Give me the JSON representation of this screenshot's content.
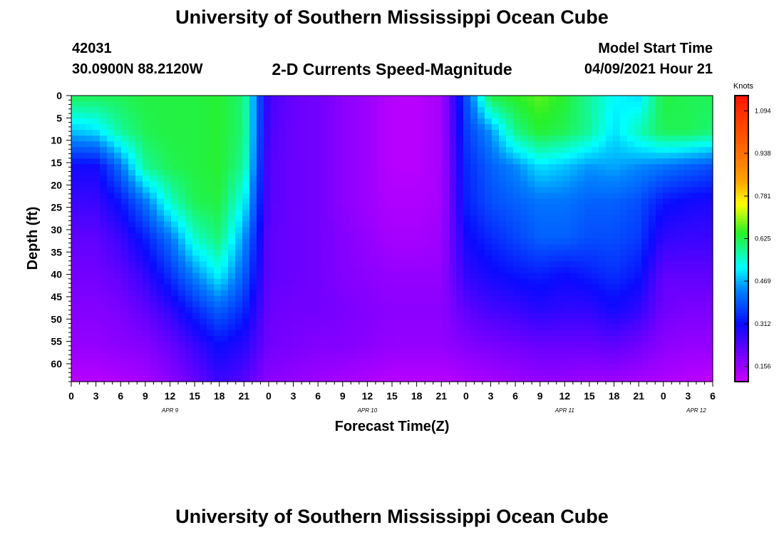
{
  "header": {
    "title": "University of Southern Mississippi Ocean Cube",
    "station_id": "42031",
    "station_position": "30.0900N  88.2120W",
    "chart_title": "2-D Currents Speed-Magnitude",
    "model_label": "Model Start Time",
    "model_time": "04/09/2021 Hour 21"
  },
  "footer": {
    "title": "University of Southern Mississippi Ocean Cube"
  },
  "chart_data": {
    "type": "heatmap",
    "title": "2-D Currents Speed-Magnitude",
    "xlabel": "Forecast Time(Z)",
    "ylabel": "Depth (ft)",
    "x_range_hours": [
      0,
      78
    ],
    "y_range_ft": [
      0,
      64
    ],
    "y_inverted": true,
    "x_ticks": [
      {
        "hour": 0,
        "label": "0"
      },
      {
        "hour": 3,
        "label": "3"
      },
      {
        "hour": 6,
        "label": "6"
      },
      {
        "hour": 9,
        "label": "9"
      },
      {
        "hour": 12,
        "label": "12"
      },
      {
        "hour": 15,
        "label": "15"
      },
      {
        "hour": 18,
        "label": "18"
      },
      {
        "hour": 21,
        "label": "21"
      },
      {
        "hour": 24,
        "label": "0"
      },
      {
        "hour": 27,
        "label": "3"
      },
      {
        "hour": 30,
        "label": "6"
      },
      {
        "hour": 33,
        "label": "9"
      },
      {
        "hour": 36,
        "label": "12"
      },
      {
        "hour": 39,
        "label": "15"
      },
      {
        "hour": 42,
        "label": "18"
      },
      {
        "hour": 45,
        "label": "21"
      },
      {
        "hour": 48,
        "label": "0"
      },
      {
        "hour": 51,
        "label": "3"
      },
      {
        "hour": 54,
        "label": "6"
      },
      {
        "hour": 57,
        "label": "9"
      },
      {
        "hour": 60,
        "label": "12"
      },
      {
        "hour": 63,
        "label": "15"
      },
      {
        "hour": 66,
        "label": "18"
      },
      {
        "hour": 69,
        "label": "21"
      },
      {
        "hour": 72,
        "label": "0"
      },
      {
        "hour": 75,
        "label": "3"
      },
      {
        "hour": 78,
        "label": "6"
      }
    ],
    "date_labels": [
      {
        "hour": 12,
        "label": "APR 9"
      },
      {
        "hour": 36,
        "label": "APR 10"
      },
      {
        "hour": 60,
        "label": "APR 11"
      },
      {
        "hour": 76,
        "label": "APR 12"
      }
    ],
    "y_ticks": [
      0,
      5,
      10,
      15,
      20,
      25,
      30,
      35,
      40,
      45,
      50,
      55,
      60
    ],
    "colorbar": {
      "unit": "Knots",
      "min": 0.1,
      "max": 1.15,
      "tick_values": [
        0.156,
        0.312,
        0.469,
        0.625,
        0.781,
        0.938,
        1.094
      ],
      "tick_labels": [
        "0.156",
        "0.312",
        "0.469",
        "0.625",
        "0.781",
        "0.938",
        "1.094"
      ]
    },
    "grid_depths": [
      0,
      8,
      16,
      24,
      32,
      40,
      48,
      56,
      64
    ],
    "grid_hours": [
      0,
      3,
      6,
      9,
      12,
      15,
      18,
      21,
      24,
      27,
      30,
      33,
      36,
      39,
      42,
      45,
      48,
      51,
      54,
      57,
      60,
      63,
      66,
      69,
      72,
      75,
      78
    ],
    "speed_grid": [
      [
        0.62,
        0.62,
        0.62,
        0.63,
        0.63,
        0.63,
        0.64,
        0.6,
        0.25,
        0.21,
        0.2,
        0.17,
        0.15,
        0.12,
        0.12,
        0.14,
        0.38,
        0.63,
        0.65,
        0.67,
        0.64,
        0.58,
        0.52,
        0.5,
        0.63,
        0.62,
        0.62
      ],
      [
        0.48,
        0.5,
        0.58,
        0.62,
        0.63,
        0.63,
        0.64,
        0.6,
        0.24,
        0.21,
        0.2,
        0.17,
        0.15,
        0.12,
        0.12,
        0.14,
        0.36,
        0.45,
        0.59,
        0.64,
        0.62,
        0.58,
        0.5,
        0.56,
        0.62,
        0.62,
        0.6
      ],
      [
        0.3,
        0.3,
        0.42,
        0.58,
        0.62,
        0.63,
        0.64,
        0.58,
        0.23,
        0.21,
        0.2,
        0.17,
        0.15,
        0.12,
        0.12,
        0.14,
        0.34,
        0.4,
        0.44,
        0.5,
        0.48,
        0.45,
        0.46,
        0.44,
        0.42,
        0.4,
        0.38
      ],
      [
        0.26,
        0.26,
        0.32,
        0.42,
        0.55,
        0.62,
        0.63,
        0.52,
        0.23,
        0.21,
        0.2,
        0.17,
        0.15,
        0.13,
        0.13,
        0.14,
        0.33,
        0.38,
        0.4,
        0.42,
        0.42,
        0.4,
        0.4,
        0.38,
        0.32,
        0.3,
        0.29
      ],
      [
        0.22,
        0.22,
        0.26,
        0.33,
        0.42,
        0.55,
        0.6,
        0.45,
        0.22,
        0.21,
        0.2,
        0.18,
        0.16,
        0.14,
        0.14,
        0.15,
        0.3,
        0.34,
        0.37,
        0.4,
        0.4,
        0.38,
        0.38,
        0.36,
        0.27,
        0.26,
        0.26
      ],
      [
        0.2,
        0.2,
        0.22,
        0.27,
        0.35,
        0.44,
        0.52,
        0.4,
        0.22,
        0.21,
        0.2,
        0.18,
        0.17,
        0.16,
        0.16,
        0.16,
        0.27,
        0.3,
        0.32,
        0.33,
        0.31,
        0.33,
        0.35,
        0.32,
        0.22,
        0.22,
        0.22
      ],
      [
        0.18,
        0.18,
        0.19,
        0.22,
        0.27,
        0.34,
        0.4,
        0.34,
        0.21,
        0.2,
        0.2,
        0.19,
        0.18,
        0.17,
        0.17,
        0.17,
        0.22,
        0.25,
        0.26,
        0.28,
        0.27,
        0.27,
        0.3,
        0.27,
        0.2,
        0.19,
        0.19
      ],
      [
        0.16,
        0.16,
        0.17,
        0.18,
        0.21,
        0.26,
        0.31,
        0.28,
        0.2,
        0.19,
        0.18,
        0.18,
        0.17,
        0.16,
        0.16,
        0.16,
        0.18,
        0.19,
        0.2,
        0.21,
        0.21,
        0.21,
        0.22,
        0.2,
        0.17,
        0.16,
        0.16
      ],
      [
        0.12,
        0.12,
        0.13,
        0.14,
        0.17,
        0.21,
        0.26,
        0.23,
        0.17,
        0.16,
        0.15,
        0.14,
        0.13,
        0.12,
        0.12,
        0.12,
        0.13,
        0.14,
        0.15,
        0.16,
        0.16,
        0.15,
        0.15,
        0.14,
        0.13,
        0.12,
        0.11
      ]
    ]
  }
}
